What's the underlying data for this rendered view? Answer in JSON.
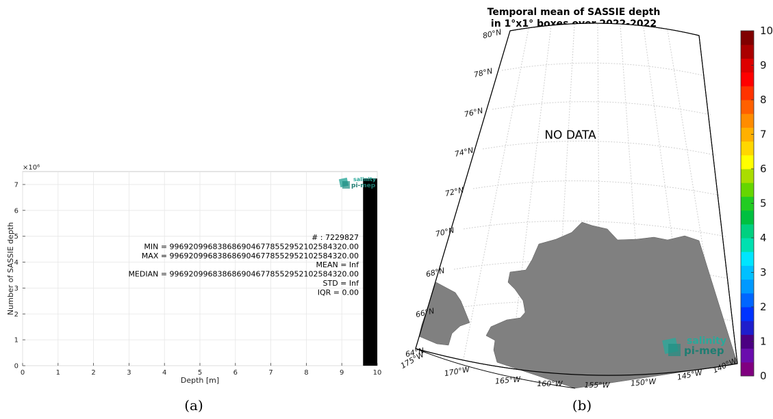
{
  "chart_data": [
    {
      "type": "bar",
      "panel_label": "(a)",
      "xlabel": "Depth [m]",
      "ylabel": "Number of SASSIE depth",
      "y_multiplier": "×10⁶",
      "xlim": [
        0,
        10
      ],
      "ylim": [
        0,
        7.5
      ],
      "x_ticks": [
        "0",
        "1",
        "2",
        "3",
        "4",
        "5",
        "6",
        "7",
        "8",
        "9",
        "10"
      ],
      "y_ticks": [
        "0",
        "1",
        "2",
        "3",
        "4",
        "5",
        "6",
        "7"
      ],
      "bars": [
        {
          "x0": 9.6,
          "x1": 10.0,
          "y": 7.229827
        }
      ],
      "grid": true,
      "bar_color": "#000000",
      "stats": [
        "# : 7229827",
        "MIN = 9969209968386869046778552952102584320.00",
        "MAX =  9969209968386869046778552952102584320.00",
        "MEAN = Inf",
        "MEDIAN = 9969209968386869046778552952102584320.00",
        "STD = Inf",
        "IQR = 0.00"
      ],
      "logo": {
        "line1": "salinity",
        "line2": "pi-mep"
      }
    },
    {
      "type": "heatmap",
      "panel_label": "(b)",
      "title_line1": "Temporal mean of SASSIE depth",
      "title_line2": "in 1°x1° boxes over 2022-2022",
      "annotation": "NO DATA",
      "lat_labels": [
        "80°N",
        "78°N",
        "76°N",
        "74°N",
        "72°N",
        "70°N",
        "68°N",
        "66°N",
        "64°N"
      ],
      "lon_labels": [
        "175°W",
        "170°W",
        "165°W",
        "160°W",
        "155°W",
        "150°W",
        "145°W",
        "140°W"
      ],
      "land_color": "#808080",
      "colorbar": {
        "range": [
          0,
          10
        ],
        "ticks": [
          "0",
          "1",
          "2",
          "3",
          "4",
          "5",
          "6",
          "7",
          "8",
          "9",
          "10"
        ],
        "colors": [
          "#800080",
          "#6a0dad",
          "#4b0082",
          "#1e1ecc",
          "#0033ff",
          "#0066ff",
          "#0099ff",
          "#00c0ff",
          "#00e5ff",
          "#00e0b0",
          "#00d080",
          "#00c040",
          "#22cc22",
          "#66d600",
          "#aadd00",
          "#ffff00",
          "#ffd700",
          "#ffb000",
          "#ff8c00",
          "#ff6000",
          "#ff3300",
          "#ff0000",
          "#dd0000",
          "#aa0000",
          "#800000"
        ]
      },
      "logo": {
        "line1": "salinity",
        "line2": "pi-mep"
      }
    }
  ]
}
